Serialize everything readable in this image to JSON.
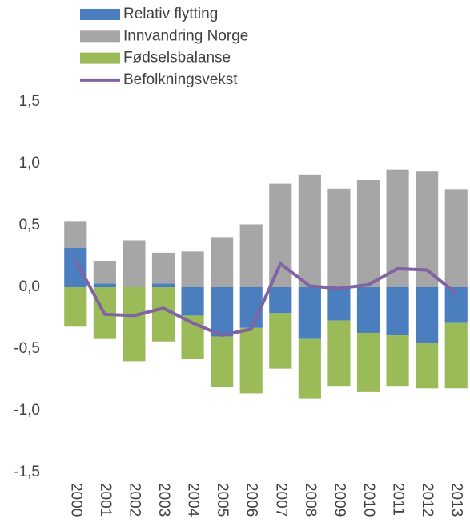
{
  "chart_data": {
    "type": "bar",
    "stacked": true,
    "legend": "top",
    "grid": false,
    "categories": [
      "2000",
      "2001",
      "2002",
      "2003",
      "2004",
      "2005",
      "2006",
      "2007",
      "2008",
      "2009",
      "2010",
      "2011",
      "2012",
      "2013"
    ],
    "series": [
      {
        "name": "Relativ flytting",
        "color": "#4a7ebf",
        "values": [
          0.32,
          0.03,
          0,
          0.03,
          -0.23,
          -0.4,
          -0.33,
          -0.21,
          -0.42,
          -0.27,
          -0.37,
          -0.39,
          -0.45,
          -0.29
        ]
      },
      {
        "name": "Innvandring Norge",
        "color": "#a6a6a6",
        "values": [
          0.21,
          0.18,
          0.38,
          0.25,
          0.29,
          0.4,
          0.51,
          0.84,
          0.91,
          0.8,
          0.87,
          0.95,
          0.94,
          0.79
        ]
      },
      {
        "name": "Fødselsbalanse",
        "color": "#9bbb59",
        "values": [
          -0.32,
          -0.42,
          -0.6,
          -0.44,
          -0.35,
          -0.41,
          -0.53,
          -0.45,
          -0.48,
          -0.53,
          -0.48,
          -0.41,
          -0.37,
          -0.53
        ]
      },
      {
        "name": "Befolkningsvekst",
        "type": "line",
        "color": "#8064a2",
        "values": [
          0.22,
          -0.22,
          -0.23,
          -0.17,
          -0.29,
          -0.39,
          -0.34,
          0.19,
          0.01,
          -0.01,
          0.02,
          0.15,
          0.14,
          -0.05
        ]
      }
    ],
    "ylim": [
      -1.5,
      1.5
    ],
    "yticks": [
      {
        "value": 1.5,
        "label": "1,5"
      },
      {
        "value": 1,
        "label": "1,0"
      },
      {
        "value": 0.5,
        "label": "0,5"
      },
      {
        "value": 0,
        "label": "0,0"
      },
      {
        "value": -0.5,
        "label": "-0,5"
      },
      {
        "value": -1,
        "label": "-1,0"
      },
      {
        "value": -1.5,
        "label": "-1,5"
      }
    ]
  }
}
